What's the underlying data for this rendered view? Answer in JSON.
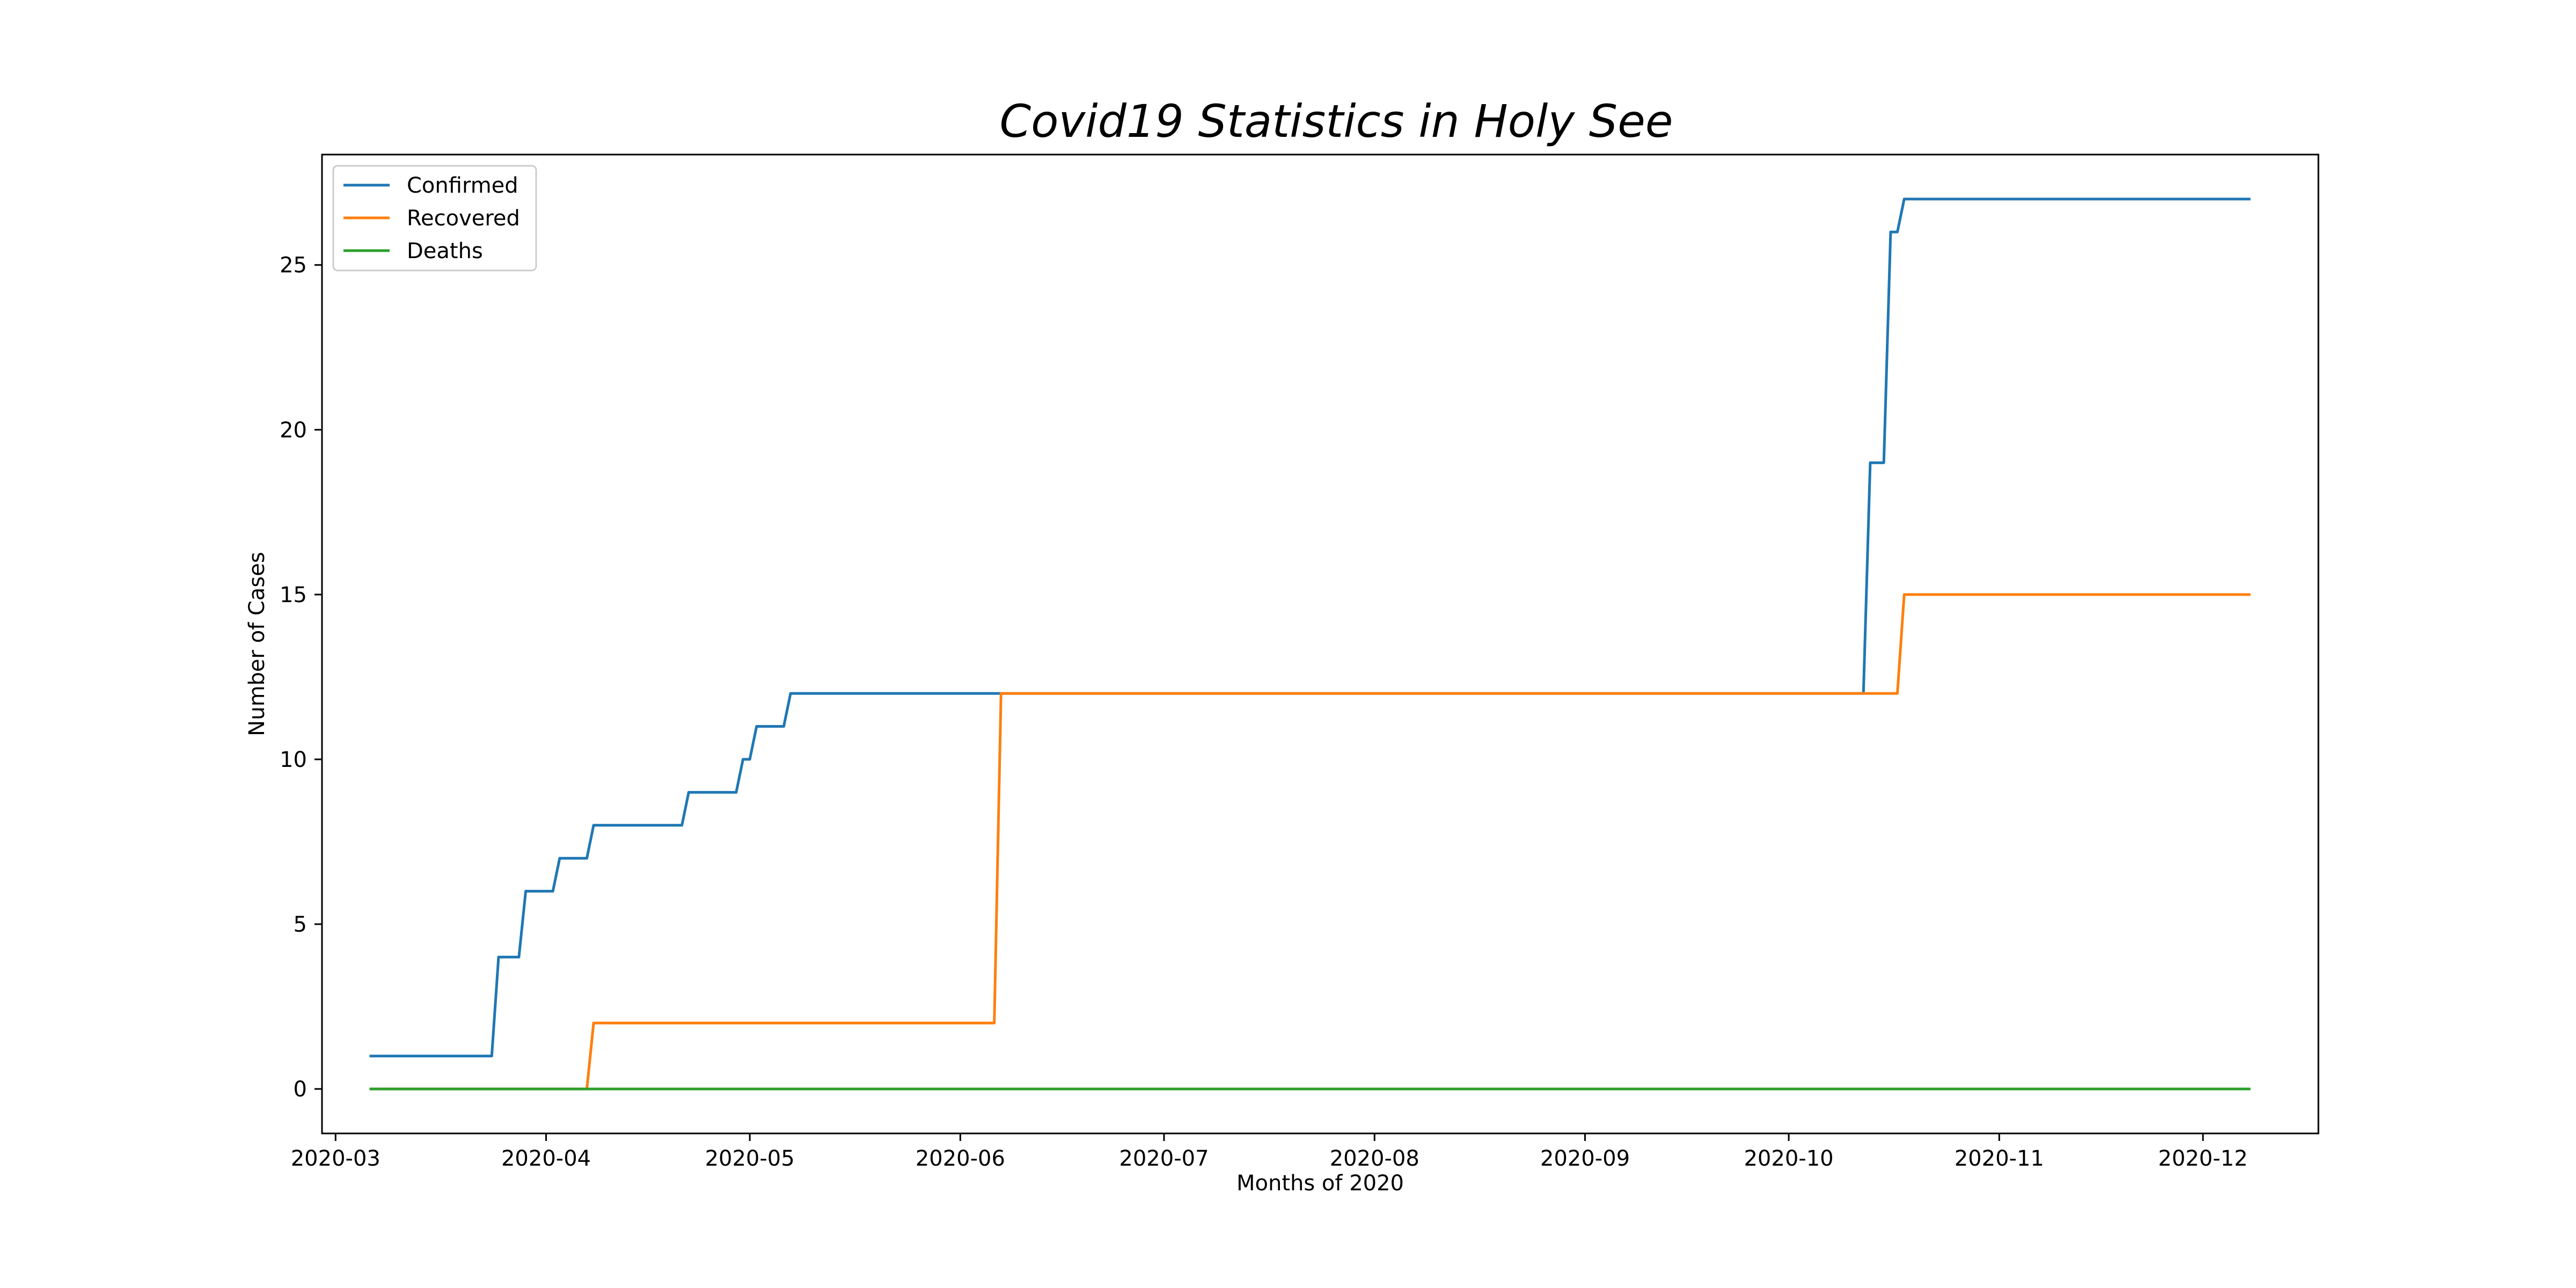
{
  "chart_data": {
    "type": "line",
    "title": "Covid19 Statistics in Holy See",
    "xlabel": "Months of 2020",
    "ylabel": "Number of Cases",
    "x_axis_type": "date",
    "xlim": [
      "2020-02-28",
      "2020-12-18"
    ],
    "ylim": [
      -1.35,
      28.35
    ],
    "x_ticks": [
      "2020-03-01",
      "2020-04-01",
      "2020-05-01",
      "2020-06-01",
      "2020-07-01",
      "2020-08-01",
      "2020-09-01",
      "2020-10-01",
      "2020-11-01",
      "2020-12-01"
    ],
    "x_tick_labels": [
      "2020-03",
      "2020-04",
      "2020-05",
      "2020-06",
      "2020-07",
      "2020-08",
      "2020-09",
      "2020-10",
      "2020-11",
      "2020-12"
    ],
    "y_ticks": [
      0,
      5,
      10,
      15,
      20,
      25
    ],
    "y_tick_labels": [
      "0",
      "5",
      "10",
      "15",
      "20",
      "25"
    ],
    "grid": false,
    "legend_position": "top-left",
    "series": [
      {
        "name": "Confirmed",
        "color": "#1f77b4",
        "points": [
          [
            "2020-03-06",
            1
          ],
          [
            "2020-03-24",
            1
          ],
          [
            "2020-03-25",
            4
          ],
          [
            "2020-03-28",
            4
          ],
          [
            "2020-03-29",
            6
          ],
          [
            "2020-04-02",
            6
          ],
          [
            "2020-04-03",
            7
          ],
          [
            "2020-04-07",
            7
          ],
          [
            "2020-04-08",
            8
          ],
          [
            "2020-04-21",
            8
          ],
          [
            "2020-04-22",
            9
          ],
          [
            "2020-04-29",
            9
          ],
          [
            "2020-04-30",
            10
          ],
          [
            "2020-05-01",
            10
          ],
          [
            "2020-05-02",
            11
          ],
          [
            "2020-05-06",
            11
          ],
          [
            "2020-05-07",
            12
          ],
          [
            "2020-10-12",
            12
          ],
          [
            "2020-10-13",
            19
          ],
          [
            "2020-10-15",
            19
          ],
          [
            "2020-10-16",
            26
          ],
          [
            "2020-10-17",
            26
          ],
          [
            "2020-10-18",
            27
          ],
          [
            "2020-12-08",
            27
          ]
        ]
      },
      {
        "name": "Recovered",
        "color": "#ff7f0e",
        "points": [
          [
            "2020-03-06",
            0
          ],
          [
            "2020-04-07",
            0
          ],
          [
            "2020-04-08",
            2
          ],
          [
            "2020-06-06",
            2
          ],
          [
            "2020-06-07",
            12
          ],
          [
            "2020-10-17",
            12
          ],
          [
            "2020-10-18",
            15
          ],
          [
            "2020-12-08",
            15
          ]
        ]
      },
      {
        "name": "Deaths",
        "color": "#2ca02c",
        "points": [
          [
            "2020-03-06",
            0
          ],
          [
            "2020-12-08",
            0
          ]
        ]
      }
    ]
  }
}
